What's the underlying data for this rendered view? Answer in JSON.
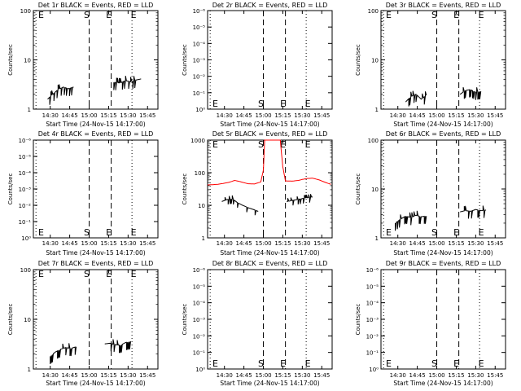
{
  "figure": {
    "background": "#ffffff",
    "axis_color": "#000000",
    "event_color": "#000000",
    "lld_color": "#ff0000"
  },
  "chart_data": [
    {
      "type": "line",
      "title": "Det 1r  BLACK = Events, RED = LLD",
      "xlabel": "Start Time (24-Nov-15 14:17:00)",
      "ylabel": "Counts/sec",
      "x_ticks": [
        "14:30",
        "14:45",
        "15:00",
        "15:15",
        "15:30",
        "15:45"
      ],
      "y_ticks": [
        "1",
        "10",
        "100"
      ],
      "ylim": [
        1,
        100
      ],
      "y_scale": "log",
      "markers": [
        {
          "label": "E",
          "time": "14:19",
          "style": "dotted"
        },
        {
          "label": "S",
          "time": "15:00",
          "style": "dashed"
        },
        {
          "label": "E",
          "time": "15:17",
          "style": "dashed"
        },
        {
          "label": "E",
          "time": "15:33",
          "style": "dotted"
        }
      ],
      "series": [
        {
          "name": "Events",
          "color": "#000000",
          "noisy": true,
          "segments": [
            [
              [
                "14:28",
                1.6
              ],
              [
                "14:32",
                2.0
              ],
              [
                "14:36",
                2.5
              ],
              [
                "14:40",
                2.8
              ],
              [
                "14:44",
                2.6
              ],
              [
                "14:48",
                2.8
              ]
            ],
            [
              [
                "15:19",
                3.5
              ],
              [
                "15:24",
                3.4
              ],
              [
                "15:28",
                3.8
              ],
              [
                "15:32",
                3.6
              ],
              [
                "15:36",
                3.9
              ],
              [
                "15:40",
                4.1
              ]
            ]
          ]
        }
      ]
    },
    {
      "type": "line",
      "title": "Det 2r  BLACK = Events, RED = LLD",
      "xlabel": "Start Time (24-Nov-15 14:17:00)",
      "ylabel": "Counts/sec",
      "x_ticks": [
        "14:30",
        "14:45",
        "15:00",
        "15:15",
        "15:30",
        "15:45"
      ],
      "y_ticks": [
        "10⁰",
        "10⁻¹",
        "10⁻²",
        "10⁻³",
        "10⁻⁴",
        "10⁻⁵",
        "10⁻⁶"
      ],
      "y_scale": "log",
      "markers": [
        {
          "label": "E",
          "time": "14:19",
          "style": "dotted"
        },
        {
          "label": "S",
          "time": "15:00",
          "style": "dashed"
        },
        {
          "label": "E",
          "time": "15:17",
          "style": "dashed"
        },
        {
          "label": "E",
          "time": "15:33",
          "style": "dotted"
        }
      ],
      "series": []
    },
    {
      "type": "line",
      "title": "Det 3r  BLACK = Events, RED = LLD",
      "xlabel": "Start Time (24-Nov-15 14:17:00)",
      "ylabel": "Counts/sec",
      "x_ticks": [
        "14:30",
        "14:45",
        "15:00",
        "15:15",
        "15:30",
        "15:45"
      ],
      "y_ticks": [
        "1",
        "10",
        "100"
      ],
      "ylim": [
        1,
        100
      ],
      "y_scale": "log",
      "markers": [
        {
          "label": "E",
          "time": "14:19",
          "style": "dotted"
        },
        {
          "label": "S",
          "time": "15:00",
          "style": "dashed"
        },
        {
          "label": "E",
          "time": "15:17",
          "style": "dashed"
        },
        {
          "label": "E",
          "time": "15:33",
          "style": "dotted"
        }
      ],
      "series": [
        {
          "name": "Events",
          "color": "#000000",
          "noisy": true,
          "segments": [
            [
              [
                "14:36",
                1.4
              ],
              [
                "14:40",
                1.8
              ],
              [
                "14:44",
                2.0
              ],
              [
                "14:48",
                1.6
              ],
              [
                "14:52",
                1.9
              ]
            ],
            [
              [
                "15:18",
                2.0
              ],
              [
                "15:22",
                2.4
              ],
              [
                "15:26",
                2.5
              ],
              [
                "15:30",
                2.2
              ],
              [
                "15:34",
                2.3
              ]
            ]
          ]
        }
      ]
    },
    {
      "type": "line",
      "title": "Det 4r  BLACK = Events, RED = LLD",
      "xlabel": "Start Time (24-Nov-15 14:17:00)",
      "ylabel": "Counts/sec",
      "x_ticks": [
        "14:30",
        "14:45",
        "15:00",
        "15:15",
        "15:30",
        "15:45"
      ],
      "y_ticks": [
        "10⁰",
        "10⁻¹",
        "10⁻²",
        "10⁻³",
        "10⁻⁴",
        "10⁻⁵",
        "10⁻⁶"
      ],
      "y_scale": "log",
      "markers": [
        {
          "label": "E",
          "time": "14:19",
          "style": "dotted"
        },
        {
          "label": "S",
          "time": "15:00",
          "style": "dashed"
        },
        {
          "label": "E",
          "time": "15:17",
          "style": "dashed"
        },
        {
          "label": "E",
          "time": "15:33",
          "style": "dotted"
        }
      ],
      "series": []
    },
    {
      "type": "line",
      "title": "Det 5r  BLACK = Events, RED = LLD",
      "xlabel": "Start Time (24-Nov-15 14:17:00)",
      "ylabel": "Counts/sec",
      "x_ticks": [
        "14:30",
        "14:45",
        "15:00",
        "15:15",
        "15:30",
        "15:45"
      ],
      "y_ticks": [
        "1",
        "10",
        "100",
        "1000"
      ],
      "ylim": [
        1,
        1000
      ],
      "y_scale": "log",
      "markers": [
        {
          "label": "E",
          "time": "14:19",
          "style": "dotted"
        },
        {
          "label": "S",
          "time": "15:00",
          "style": "dashed"
        },
        {
          "label": "E",
          "time": "15:17",
          "style": "dashed"
        },
        {
          "label": "E",
          "time": "15:33",
          "style": "dotted"
        }
      ],
      "series": [
        {
          "name": "LLD",
          "color": "#ff0000",
          "noisy": false,
          "segments": [
            [
              [
                "14:17",
                42
              ],
              [
                "14:25",
                44
              ],
              [
                "14:33",
                50
              ],
              [
                "14:38",
                58
              ],
              [
                "14:43",
                52
              ],
              [
                "14:48",
                46
              ],
              [
                "14:53",
                45
              ],
              [
                "14:58",
                52
              ],
              [
                "15:00",
                120
              ],
              [
                "15:01",
                1000
              ],
              [
                "15:13",
                1000
              ],
              [
                "15:15",
                150
              ],
              [
                "15:17",
                56
              ],
              [
                "15:22",
                55
              ],
              [
                "15:27",
                58
              ],
              [
                "15:33",
                66
              ],
              [
                "15:38",
                68
              ],
              [
                "15:43",
                60
              ],
              [
                "15:48",
                50
              ],
              [
                "15:52",
                44
              ]
            ]
          ]
        },
        {
          "name": "Events",
          "color": "#000000",
          "noisy": true,
          "segments": [
            [
              [
                "14:28",
                13
              ],
              [
                "14:32",
                15
              ],
              [
                "14:36",
                16
              ],
              [
                "14:40",
                12
              ],
              [
                "14:44",
                10
              ],
              [
                "14:48",
                8.5
              ],
              [
                "14:52",
                7.5
              ],
              [
                "14:56",
                6.5
              ]
            ],
            [
              [
                "15:18",
                13
              ],
              [
                "15:22",
                14
              ],
              [
                "15:26",
                15
              ],
              [
                "15:30",
                16
              ],
              [
                "15:34",
                17
              ],
              [
                "15:38",
                18
              ]
            ]
          ]
        }
      ]
    },
    {
      "type": "line",
      "title": "Det 6r  BLACK = Events, RED = LLD",
      "xlabel": "Start Time (24-Nov-15 14:17:00)",
      "ylabel": "Counts/sec",
      "x_ticks": [
        "14:30",
        "14:45",
        "15:00",
        "15:15",
        "15:30",
        "15:45"
      ],
      "y_ticks": [
        "1",
        "10",
        "100"
      ],
      "ylim": [
        1,
        100
      ],
      "y_scale": "log",
      "markers": [
        {
          "label": "E",
          "time": "14:19",
          "style": "dotted"
        },
        {
          "label": "S",
          "time": "15:00",
          "style": "dashed"
        },
        {
          "label": "E",
          "time": "15:17",
          "style": "dashed"
        },
        {
          "label": "E",
          "time": "15:33",
          "style": "dotted"
        }
      ],
      "series": [
        {
          "name": "Events",
          "color": "#000000",
          "noisy": true,
          "segments": [
            [
              [
                "14:28",
                2.0
              ],
              [
                "14:32",
                2.4
              ],
              [
                "14:36",
                2.8
              ],
              [
                "14:40",
                2.6
              ],
              [
                "14:44",
                2.9
              ],
              [
                "14:48",
                2.7
              ],
              [
                "14:52",
                2.8
              ]
            ],
            [
              [
                "15:18",
                3.4
              ],
              [
                "15:22",
                3.6
              ],
              [
                "15:26",
                3.5
              ],
              [
                "15:30",
                3.8
              ],
              [
                "15:34",
                3.6
              ],
              [
                "15:38",
                3.7
              ]
            ]
          ]
        }
      ]
    },
    {
      "type": "line",
      "title": "Det 7r  BLACK = Events, RED = LLD",
      "xlabel": "Start Time (24-Nov-15 14:17:00)",
      "ylabel": "Counts/sec",
      "x_ticks": [
        "14:30",
        "14:45",
        "15:00",
        "15:15",
        "15:30",
        "15:45"
      ],
      "y_ticks": [
        "1",
        "10",
        "100"
      ],
      "ylim": [
        1,
        100
      ],
      "y_scale": "log",
      "markers": [
        {
          "label": "E",
          "time": "14:19",
          "style": "dotted"
        },
        {
          "label": "S",
          "time": "15:00",
          "style": "dashed"
        },
        {
          "label": "E",
          "time": "15:17",
          "style": "dashed"
        },
        {
          "label": "E",
          "time": "15:33",
          "style": "dotted"
        }
      ],
      "series": [
        {
          "name": "Events",
          "color": "#000000",
          "noisy": true,
          "segments": [
            [
              [
                "14:30",
                1.8
              ],
              [
                "14:34",
                2.2
              ],
              [
                "14:38",
                2.5
              ],
              [
                "14:42",
                2.7
              ],
              [
                "14:46",
                2.6
              ],
              [
                "14:50",
                2.8
              ]
            ],
            [
              [
                "15:12",
                3.2
              ],
              [
                "15:16",
                3.3
              ],
              [
                "15:20",
                3.1
              ],
              [
                "15:24",
                3.0
              ],
              [
                "15:28",
                3.4
              ],
              [
                "15:32",
                3.6
              ]
            ]
          ]
        }
      ]
    },
    {
      "type": "line",
      "title": "Det 8r  BLACK = Events, RED = LLD",
      "xlabel": "Start Time (24-Nov-15 14:17:00)",
      "ylabel": "Counts/sec",
      "x_ticks": [
        "14:30",
        "14:45",
        "15:00",
        "15:15",
        "15:30",
        "15:45"
      ],
      "y_ticks": [
        "10⁰",
        "10⁻¹",
        "10⁻²",
        "10⁻³",
        "10⁻⁴",
        "10⁻⁵",
        "10⁻⁶"
      ],
      "y_scale": "log",
      "markers": [
        {
          "label": "E",
          "time": "14:19",
          "style": "dotted"
        },
        {
          "label": "S",
          "time": "15:00",
          "style": "dashed"
        },
        {
          "label": "E",
          "time": "15:17",
          "style": "dashed"
        },
        {
          "label": "E",
          "time": "15:33",
          "style": "dotted"
        }
      ],
      "series": []
    },
    {
      "type": "line",
      "title": "Det 9r  BLACK = Events, RED = LLD",
      "xlabel": "Start Time (24-Nov-15 14:17:00)",
      "ylabel": "Counts/sec",
      "x_ticks": [
        "14:30",
        "14:45",
        "15:00",
        "15:15",
        "15:30",
        "15:45"
      ],
      "y_ticks": [
        "10⁰",
        "10⁻¹",
        "10⁻²",
        "10⁻³",
        "10⁻⁴",
        "10⁻⁵",
        "10⁻⁶"
      ],
      "y_scale": "log",
      "markers": [
        {
          "label": "E",
          "time": "14:19",
          "style": "dotted"
        },
        {
          "label": "S",
          "time": "15:00",
          "style": "dashed"
        },
        {
          "label": "E",
          "time": "15:17",
          "style": "dashed"
        },
        {
          "label": "E",
          "time": "15:33",
          "style": "dotted"
        }
      ],
      "series": []
    }
  ]
}
